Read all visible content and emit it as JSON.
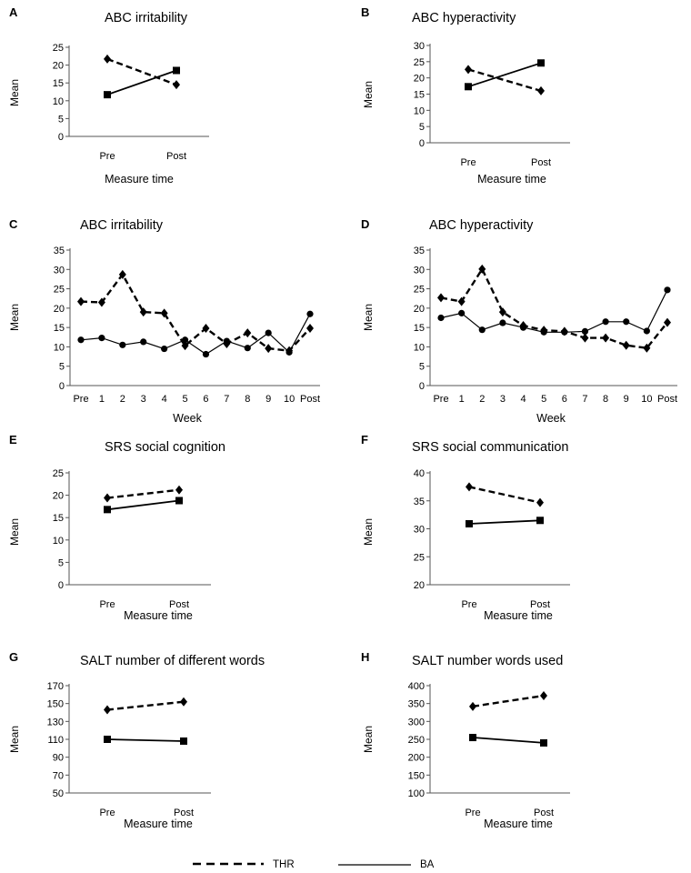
{
  "legend": {
    "thr": "THR",
    "ba": "BA"
  },
  "colors": {
    "line": "#000000",
    "axis": "#555555",
    "accent_marker": "#1b2a6b"
  },
  "chart_data": [
    {
      "id": "A",
      "panel_label": "A",
      "type": "line",
      "title": "ABC irritability",
      "xlabel": "Measure time",
      "ylabel": "Mean",
      "categories": [
        "Pre",
        "Post"
      ],
      "ylim": [
        0,
        25
      ],
      "yticks": [
        0,
        5,
        10,
        15,
        20,
        25
      ],
      "series": [
        {
          "name": "THR",
          "values": [
            21.7,
            14.5
          ]
        },
        {
          "name": "BA",
          "values": [
            11.7,
            18.5
          ]
        }
      ]
    },
    {
      "id": "B",
      "panel_label": "B",
      "type": "line",
      "title": "ABC hyperactivity",
      "xlabel": "Measure time",
      "ylabel": "Mean",
      "categories": [
        "Pre",
        "Post"
      ],
      "ylim": [
        0,
        30
      ],
      "yticks": [
        0,
        5,
        10,
        15,
        20,
        25,
        30
      ],
      "series": [
        {
          "name": "THR",
          "values": [
            22.6,
            16.0
          ]
        },
        {
          "name": "BA",
          "values": [
            17.3,
            24.6
          ]
        }
      ]
    },
    {
      "id": "C",
      "panel_label": "C",
      "type": "line",
      "title": "ABC irritability",
      "xlabel": "Week",
      "ylabel": "Mean",
      "categories": [
        "Pre",
        "1",
        "2",
        "3",
        "4",
        "5",
        "6",
        "7",
        "8",
        "9",
        "10",
        "Post"
      ],
      "ylim": [
        0,
        35
      ],
      "yticks": [
        0,
        5,
        10,
        15,
        20,
        25,
        30,
        35
      ],
      "series": [
        {
          "name": "THR",
          "values": [
            21.7,
            21.5,
            28.7,
            19.0,
            18.7,
            10.3,
            14.8,
            10.8,
            13.6,
            9.6,
            9.0,
            14.8
          ]
        },
        {
          "name": "BA",
          "values": [
            11.8,
            12.3,
            10.5,
            11.3,
            9.5,
            11.8,
            8.1,
            11.5,
            9.7,
            13.6,
            8.6,
            18.5
          ]
        }
      ]
    },
    {
      "id": "D",
      "panel_label": "D",
      "type": "line",
      "title": "ABC hyperactivity",
      "xlabel": "Week",
      "ylabel": "Mean",
      "categories": [
        "Pre",
        "1",
        "2",
        "3",
        "4",
        "5",
        "6",
        "7",
        "8",
        "9",
        "10",
        "Post"
      ],
      "ylim": [
        0,
        35
      ],
      "yticks": [
        0,
        5,
        10,
        15,
        20,
        25,
        30,
        35
      ],
      "series": [
        {
          "name": "THR",
          "values": [
            22.7,
            21.7,
            30.1,
            19.0,
            15.5,
            14.3,
            14.0,
            12.3,
            12.3,
            10.4,
            9.7,
            16.3
          ]
        },
        {
          "name": "BA",
          "values": [
            17.5,
            18.7,
            14.4,
            16.2,
            15.0,
            13.8,
            13.8,
            14.0,
            16.5,
            16.5,
            14.1,
            24.7
          ]
        }
      ]
    },
    {
      "id": "E",
      "panel_label": "E",
      "type": "line",
      "title": "SRS social cognition",
      "xlabel": "Measure time",
      "ylabel": "Mean",
      "categories": [
        "Pre",
        "Post"
      ],
      "ylim": [
        0,
        25
      ],
      "yticks": [
        0,
        5,
        10,
        15,
        20,
        25
      ],
      "series": [
        {
          "name": "THR",
          "values": [
            19.4,
            21.2
          ]
        },
        {
          "name": "BA",
          "values": [
            16.8,
            18.8
          ]
        }
      ]
    },
    {
      "id": "F",
      "panel_label": "F",
      "type": "line",
      "title": "SRS social communication",
      "xlabel": "Measure time",
      "ylabel": "Mean",
      "categories": [
        "Pre",
        "Post"
      ],
      "ylim": [
        20,
        40
      ],
      "yticks": [
        20,
        25,
        30,
        35,
        40
      ],
      "series": [
        {
          "name": "THR",
          "values": [
            37.5,
            34.7
          ]
        },
        {
          "name": "BA",
          "values": [
            30.9,
            31.5
          ]
        }
      ]
    },
    {
      "id": "G",
      "panel_label": "G",
      "type": "line",
      "title": "SALT number  of different words",
      "xlabel": "Measure time",
      "ylabel": "Mean",
      "categories": [
        "Pre",
        "Post"
      ],
      "ylim": [
        50,
        170
      ],
      "yticks": [
        50,
        70,
        90,
        110,
        130,
        150,
        170
      ],
      "series": [
        {
          "name": "THR",
          "values": [
            143,
            152
          ]
        },
        {
          "name": "BA",
          "values": [
            110,
            108
          ]
        }
      ]
    },
    {
      "id": "H",
      "panel_label": "H",
      "type": "line",
      "title": "SALT number  words used",
      "xlabel": "Measure time",
      "ylabel": "Mean",
      "categories": [
        "Pre",
        "Post"
      ],
      "ylim": [
        100,
        400
      ],
      "yticks": [
        100,
        150,
        200,
        250,
        300,
        350,
        400
      ],
      "series": [
        {
          "name": "THR",
          "values": [
            342,
            372
          ]
        },
        {
          "name": "BA",
          "values": [
            255,
            240
          ]
        }
      ]
    }
  ]
}
